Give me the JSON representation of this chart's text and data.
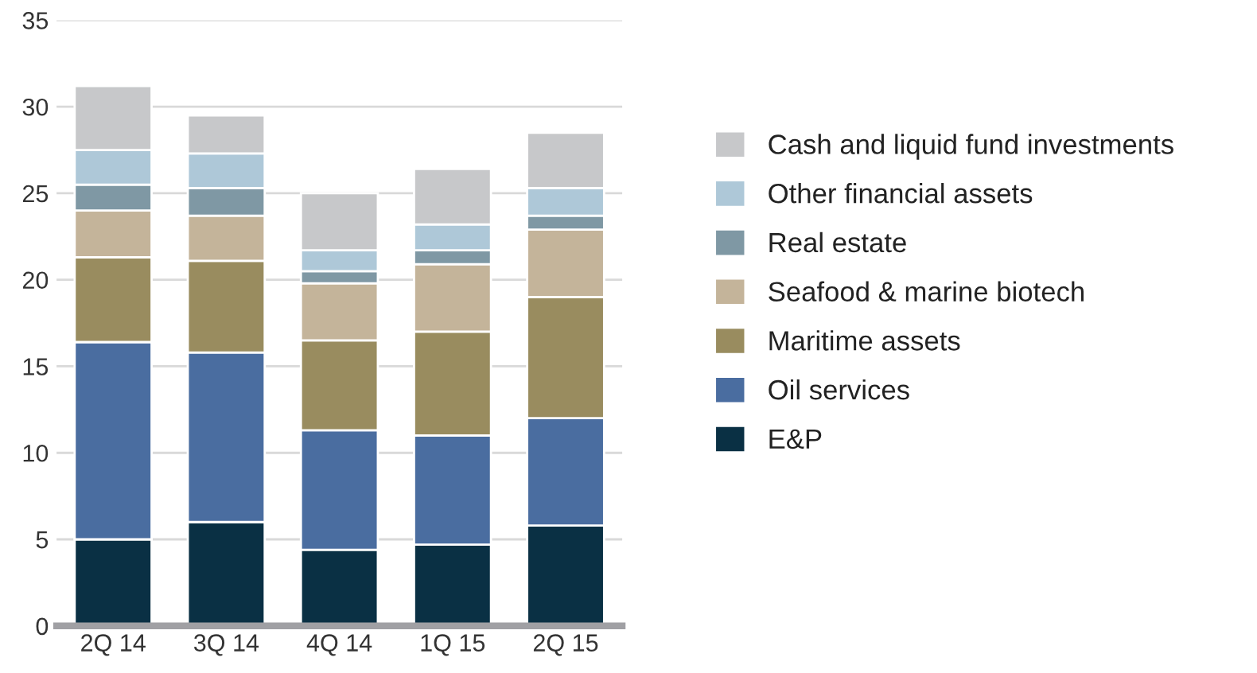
{
  "chart_data": {
    "type": "bar",
    "stacked": true,
    "categories": [
      "2Q 14",
      "3Q 14",
      "4Q 14",
      "1Q 15",
      "2Q 15"
    ],
    "series": [
      {
        "name": "E&P",
        "color": "#0a3044",
        "values": [
          5.0,
          6.0,
          4.4,
          4.7,
          5.8
        ]
      },
      {
        "name": "Oil services",
        "color": "#4a6da0",
        "values": [
          11.4,
          9.8,
          6.9,
          6.3,
          6.2
        ]
      },
      {
        "name": "Maritime assets",
        "color": "#998c5f",
        "values": [
          4.9,
          5.3,
          5.2,
          6.0,
          7.0
        ]
      },
      {
        "name": "Seafood & marine biotech",
        "color": "#c4b49a",
        "values": [
          2.7,
          2.6,
          3.3,
          3.9,
          3.9
        ]
      },
      {
        "name": "Real estate",
        "color": "#7f98a4",
        "values": [
          1.5,
          1.6,
          0.7,
          0.8,
          0.8
        ]
      },
      {
        "name": "Other financial assets",
        "color": "#aec8d8",
        "values": [
          2.0,
          2.0,
          1.2,
          1.5,
          1.6
        ]
      },
      {
        "name": "Cash and liquid fund investments",
        "color": "#c7c8ca",
        "values": [
          3.7,
          2.2,
          3.3,
          3.2,
          3.2
        ]
      }
    ],
    "ylim": [
      0,
      35
    ],
    "yticks": [
      0,
      5,
      10,
      15,
      20,
      25,
      30,
      35
    ],
    "grid": "y",
    "legend": "right"
  }
}
